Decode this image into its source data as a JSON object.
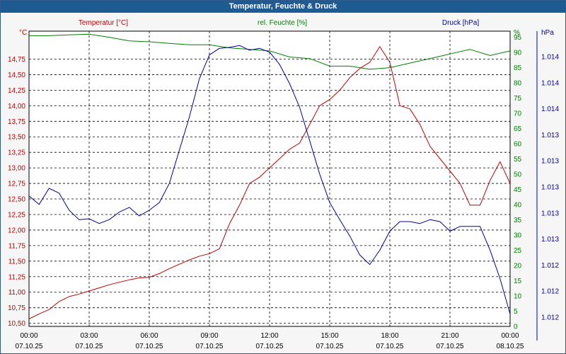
{
  "window": {
    "title": "Temperatur, Feuchte & Druck"
  },
  "colors": {
    "temperature": "#c00000",
    "humidity": "#008000",
    "pressure": "#00009c"
  },
  "chart_data": {
    "type": "line",
    "title": "Temperatur, Feuchte & Druck",
    "xlabel": "",
    "x_ticks": [
      {
        "h": 0,
        "time": "00:00",
        "date": "07.10.25"
      },
      {
        "h": 3,
        "time": "03:00",
        "date": "07.10.25"
      },
      {
        "h": 6,
        "time": "06:00",
        "date": "07.10.25"
      },
      {
        "h": 9,
        "time": "09:00",
        "date": "07.10.25"
      },
      {
        "h": 12,
        "time": "12:00",
        "date": "07.10.25"
      },
      {
        "h": 15,
        "time": "15:00",
        "date": "07.10.25"
      },
      {
        "h": 18,
        "time": "18:00",
        "date": "07.10.25"
      },
      {
        "h": 21,
        "time": "21:00",
        "date": "07.10.25"
      },
      {
        "h": 24,
        "time": "00:00",
        "date": "08.10.25"
      }
    ],
    "axes": {
      "temperature": {
        "title": "Temperatur [°C]",
        "unit": "°C",
        "range": [
          10.45,
          15.2
        ],
        "ticks": [
          "10,50",
          "10,75",
          "11,00",
          "11,25",
          "11,50",
          "11,75",
          "12,00",
          "12,25",
          "12,50",
          "12,75",
          "13,00",
          "13,25",
          "13,50",
          "13,75",
          "14,00",
          "14,25",
          "14,50",
          "14,75"
        ]
      },
      "humidity": {
        "title": "rel. Feuchte [%]",
        "unit": "%",
        "range": [
          0,
          97
        ],
        "ticks": [
          "0",
          "5",
          "10",
          "15",
          "20",
          "25",
          "30",
          "35",
          "40",
          "45",
          "50",
          "55",
          "60",
          "65",
          "70",
          "75",
          "80",
          "85",
          "90",
          "95"
        ]
      },
      "pressure": {
        "title": "Druck [hPa]",
        "unit": "hPa",
        "range": [
          1011.5,
          1014.6
        ],
        "ticks": [
          "1.014",
          "1.014",
          "1.014",
          "1.013",
          "1.013",
          "1.013",
          "1.013",
          "1.013",
          "1.012",
          "1.012",
          "1.012"
        ]
      }
    },
    "series": [
      {
        "name": "Temperatur [°C]",
        "axis": "temperature",
        "x": [
          0,
          0.5,
          1,
          1.5,
          2,
          2.5,
          3,
          3.5,
          4,
          4.5,
          5,
          5.5,
          6,
          6.5,
          7,
          7.5,
          8,
          8.5,
          9,
          9.5,
          10,
          10.5,
          11,
          11.5,
          12,
          12.5,
          13,
          13.5,
          14,
          14.5,
          15,
          15.5,
          16,
          16.5,
          17,
          17.5,
          18,
          18.5,
          19,
          19.5,
          20,
          20.5,
          21,
          21.5,
          22,
          22.5,
          23,
          23.5,
          24
        ],
        "values": [
          10.57,
          10.65,
          10.72,
          10.85,
          10.93,
          10.97,
          11.02,
          11.07,
          11.12,
          11.16,
          11.2,
          11.23,
          11.24,
          11.3,
          11.38,
          11.45,
          11.52,
          11.58,
          11.62,
          11.7,
          12.1,
          12.4,
          12.75,
          12.85,
          13.0,
          13.15,
          13.3,
          13.4,
          13.7,
          14.0,
          14.1,
          14.25,
          14.45,
          14.6,
          14.7,
          14.95,
          14.7,
          14.0,
          13.95,
          13.7,
          13.35,
          13.15,
          12.95,
          12.75,
          12.4,
          12.4,
          12.8,
          13.1,
          12.75
        ]
      },
      {
        "name": "rel. Feuchte [%]",
        "axis": "humidity",
        "x": [
          0,
          1,
          2,
          3,
          4,
          5,
          6,
          7,
          8,
          9,
          10,
          11,
          12,
          13,
          14,
          15,
          16,
          17,
          18,
          19,
          20,
          21,
          22,
          23,
          24
        ],
        "values": [
          95.5,
          95.5,
          95.8,
          96,
          95,
          93.8,
          93.5,
          93,
          92.5,
          92.5,
          91.5,
          91,
          90.5,
          88.5,
          88,
          85.5,
          85.5,
          84.5,
          85,
          86.5,
          88,
          89.5,
          91,
          89,
          90.5
        ]
      },
      {
        "name": "Druck [hPa]",
        "axis": "pressure",
        "x": [
          0,
          0.5,
          1,
          1.5,
          2,
          2.5,
          3,
          3.5,
          4,
          4.5,
          5,
          5.5,
          6,
          6.5,
          7,
          7.5,
          8,
          8.5,
          9,
          9.5,
          10,
          10.5,
          11,
          11.5,
          12,
          12.5,
          13,
          13.5,
          14,
          14.5,
          15,
          15.5,
          16,
          16.5,
          17,
          17.5,
          18,
          18.5,
          19,
          19.5,
          20,
          20.5,
          21,
          21.5,
          22,
          22.5,
          23,
          23.5,
          24
        ],
        "values": [
          1012.87,
          1012.78,
          1012.95,
          1012.9,
          1012.72,
          1012.62,
          1012.63,
          1012.58,
          1012.62,
          1012.7,
          1012.75,
          1012.66,
          1012.72,
          1012.8,
          1013.0,
          1013.35,
          1013.7,
          1014.1,
          1014.35,
          1014.42,
          1014.43,
          1014.45,
          1014.4,
          1014.42,
          1014.38,
          1014.25,
          1014.05,
          1013.8,
          1013.45,
          1013.1,
          1012.8,
          1012.62,
          1012.45,
          1012.25,
          1012.15,
          1012.3,
          1012.5,
          1012.6,
          1012.6,
          1012.58,
          1012.62,
          1012.6,
          1012.5,
          1012.55,
          1012.55,
          1012.55,
          1012.3,
          1012.0,
          1011.63
        ]
      }
    ]
  }
}
